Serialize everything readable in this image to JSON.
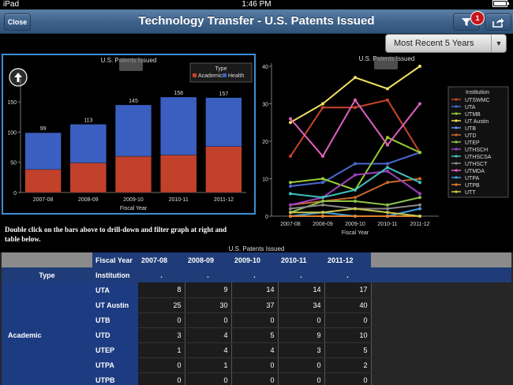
{
  "status": {
    "carrier": "iPad",
    "time": "1:46 PM",
    "battery": "battery-full-icon"
  },
  "nav": {
    "close_label": "Close",
    "title": "Technology Transfer - U.S. Patents Issued",
    "filter_badge": "1"
  },
  "period_select": {
    "value": "Most Recent 5 Years",
    "options": [
      "Most Recent 5 Years"
    ]
  },
  "instructions": "Double click on the bars above to drill-down and filter graph at right and table below.",
  "chart_data": [
    {
      "type": "bar",
      "title": "U.S. Patents Issued",
      "xlabel": "Fiscal Year",
      "ylabel": "",
      "legend_title": "Type",
      "legend_position": "top-right",
      "categories": [
        "2007-08",
        "2008-09",
        "2009-10",
        "2010-11",
        "2011-12"
      ],
      "series": [
        {
          "name": "Academic",
          "color": "#c2412b",
          "values": [
            38,
            49,
            60,
            62,
            76
          ]
        },
        {
          "name": "Health",
          "color": "#3b5fc0",
          "values": [
            61,
            64,
            85,
            96,
            81
          ]
        }
      ],
      "totals": [
        99,
        113,
        145,
        158,
        157
      ],
      "ylim": [
        0,
        175
      ],
      "yticks": [
        0,
        50,
        100,
        150
      ],
      "stacked": true
    },
    {
      "type": "line",
      "title": "U.S. Patents Issued",
      "xlabel": "Fiscal Year",
      "ylabel": "",
      "legend_title": "Institution",
      "legend_position": "right",
      "categories": [
        "2007-08",
        "2008-09",
        "2009-10",
        "2010-11",
        "2011-12"
      ],
      "ylim": [
        0,
        40
      ],
      "yticks": [
        0,
        10,
        20,
        30,
        40
      ],
      "series": [
        {
          "name": "UTSWMC",
          "color": "#c8442c",
          "values": [
            16,
            29,
            29,
            31,
            17
          ]
        },
        {
          "name": "UTA",
          "color": "#4a68d0",
          "values": [
            8,
            9,
            14,
            14,
            17
          ]
        },
        {
          "name": "UTMB",
          "color": "#9acd32",
          "values": [
            9,
            10,
            7,
            21,
            17
          ]
        },
        {
          "name": "UT Austin",
          "color": "#f0e060",
          "values": [
            25,
            30,
            37,
            34,
            40
          ]
        },
        {
          "name": "UTB",
          "color": "#6a8ee8",
          "values": [
            0,
            0,
            0,
            0,
            0
          ]
        },
        {
          "name": "UTD",
          "color": "#c86a28",
          "values": [
            3,
            4,
            5,
            9,
            10
          ]
        },
        {
          "name": "UTEP",
          "color": "#8bc34a",
          "values": [
            1,
            4,
            4,
            3,
            5
          ]
        },
        {
          "name": "UTHSCH",
          "color": "#a040c0",
          "values": [
            3,
            5,
            11,
            12,
            6
          ]
        },
        {
          "name": "UTHSCSA",
          "color": "#40c0c0",
          "values": [
            6,
            5,
            7,
            13,
            9
          ]
        },
        {
          "name": "UTHSCT",
          "color": "#8a8a8a",
          "values": [
            2,
            3,
            2,
            2,
            3
          ]
        },
        {
          "name": "UTMDA",
          "color": "#e060c0",
          "values": [
            26,
            16,
            31,
            19,
            30
          ]
        },
        {
          "name": "UTPA",
          "color": "#40a0e0",
          "values": [
            0,
            1,
            0,
            0,
            2
          ]
        },
        {
          "name": "UTPB",
          "color": "#e08030",
          "values": [
            0,
            0,
            0,
            0,
            0
          ]
        },
        {
          "name": "UTT",
          "color": "#c8c850",
          "values": [
            1,
            1,
            2,
            1,
            0
          ]
        }
      ]
    }
  ],
  "table": {
    "title": "U.S. Patents Issued",
    "fiscal_year_label": "Fiscal Year",
    "type_label": "Type",
    "institution_label": "Institution",
    "years": [
      "2007-08",
      "2008-09",
      "2009-10",
      "2010-11",
      "2011-12"
    ],
    "dot": ".",
    "group": "Academic",
    "rows": [
      {
        "inst": "UTA",
        "values": [
          "8",
          "9",
          "14",
          "14",
          "17"
        ]
      },
      {
        "inst": "UT Austin",
        "values": [
          "25",
          "30",
          "37",
          "34",
          "40"
        ]
      },
      {
        "inst": "UTB",
        "values": [
          "0",
          "0",
          "0",
          "0",
          "0"
        ]
      },
      {
        "inst": "UTD",
        "values": [
          "3",
          "4",
          "5",
          "9",
          "10"
        ]
      },
      {
        "inst": "UTEP",
        "values": [
          "1",
          "4",
          "4",
          "3",
          "5"
        ]
      },
      {
        "inst": "UTPA",
        "values": [
          "0",
          "1",
          "0",
          "0",
          "2"
        ]
      },
      {
        "inst": "UTPB",
        "values": [
          "0",
          "0",
          "0",
          "0",
          "0"
        ]
      }
    ]
  }
}
